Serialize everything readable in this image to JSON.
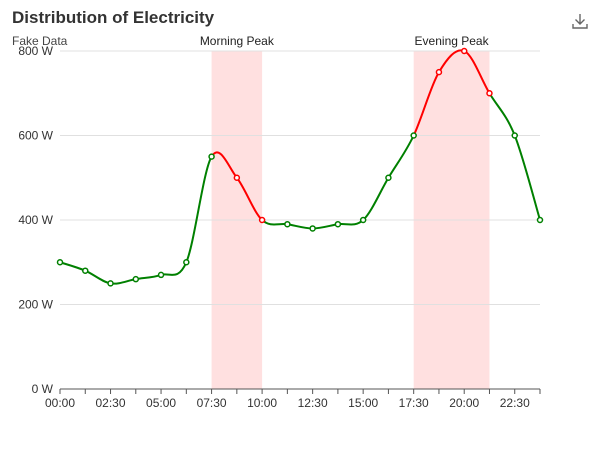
{
  "header": {
    "title": "Distribution of Electricity",
    "subtitle": "Fake Data",
    "download_icon": "download-icon"
  },
  "chart_data": {
    "type": "line",
    "title": "Distribution of Electricity",
    "subtitle": "Fake Data",
    "xlabel": "",
    "ylabel": "",
    "unit": "W",
    "x": [
      "00:00",
      "01:15",
      "02:30",
      "03:45",
      "05:00",
      "06:15",
      "07:30",
      "08:45",
      "10:00",
      "11:15",
      "12:30",
      "13:45",
      "15:00",
      "16:15",
      "17:30",
      "18:45",
      "20:00",
      "21:15",
      "22:30",
      "23:45"
    ],
    "x_tick_labels": [
      "00:00",
      "02:30",
      "05:00",
      "07:30",
      "10:00",
      "12:30",
      "15:00",
      "17:30",
      "20:00",
      "22:30"
    ],
    "series": [
      {
        "values": [
          300,
          280,
          250,
          260,
          270,
          300,
          550,
          500,
          400,
          390,
          380,
          390,
          400,
          500,
          600,
          750,
          800,
          700,
          600,
          400
        ]
      }
    ],
    "ylim": [
      0,
      800
    ],
    "y_ticks": [
      0,
      200,
      400,
      600,
      800
    ],
    "y_tick_labels": [
      "0 W",
      "200 W",
      "400 W",
      "600 W",
      "800 W"
    ],
    "grid": true,
    "colors": {
      "normal": "#008000",
      "peak": "#ff0000",
      "band": "#ffe0e0"
    },
    "mark_areas": [
      {
        "label": "Morning Peak",
        "start": "07:30",
        "end": "10:00"
      },
      {
        "label": "Evening Peak",
        "start": "17:30",
        "end": "21:15"
      }
    ]
  }
}
